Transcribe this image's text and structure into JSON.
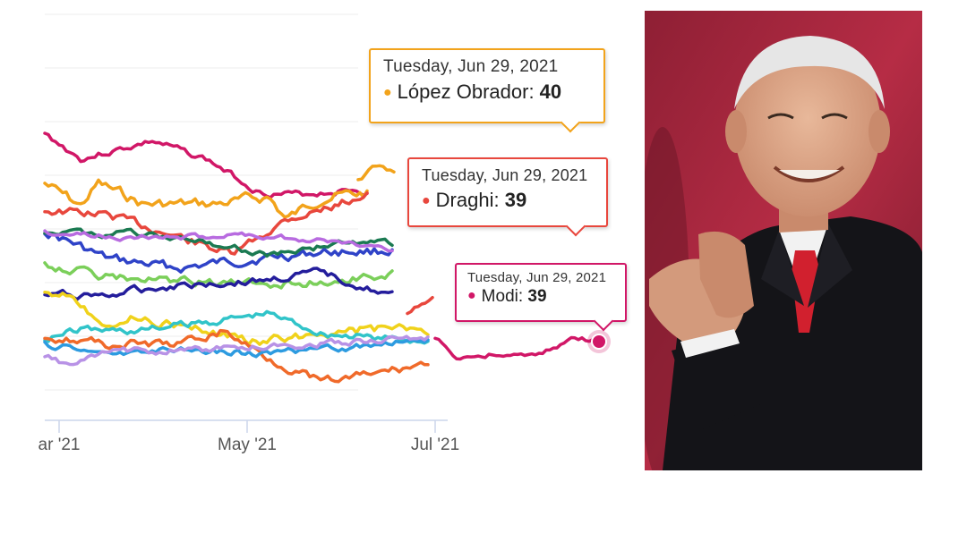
{
  "colors": {
    "lopez_obrador": "#f2a31b",
    "draghi": "#e8473d",
    "modi": "#d11767",
    "other_series": [
      "#2f43c8",
      "#1b7a52",
      "#b86be0",
      "#7bcf5a",
      "#241d9c",
      "#f0d21b",
      "#31c4c9",
      "#f06a2a",
      "#2d9be0",
      "#b892e6"
    ]
  },
  "chart_data": {
    "type": "line",
    "x_axis": {
      "ticks": [
        "ar '21",
        "May '21",
        "Jul '21"
      ]
    },
    "highlight_date": "Tuesday, Jun 29, 2021",
    "series": [
      {
        "name": "López Obrador",
        "values_note": "",
        "last_value": 40
      },
      {
        "name": "Draghi",
        "last_value": 39
      },
      {
        "name": "Modi",
        "last_value": 39
      }
    ]
  },
  "tooltips": [
    {
      "date": "Tuesday, Jun 29, 2021",
      "label": "López Obrador",
      "value": "40",
      "color": "#f2a31b"
    },
    {
      "date": "Tuesday, Jun 29, 2021",
      "label": "Draghi",
      "value": "39",
      "color": "#e8473d"
    },
    {
      "date": "Tuesday, Jun 29, 2021",
      "label": "Modi",
      "value": "39",
      "color": "#d11767"
    }
  ],
  "photo": {
    "description_icon": "person-photo-icon"
  }
}
